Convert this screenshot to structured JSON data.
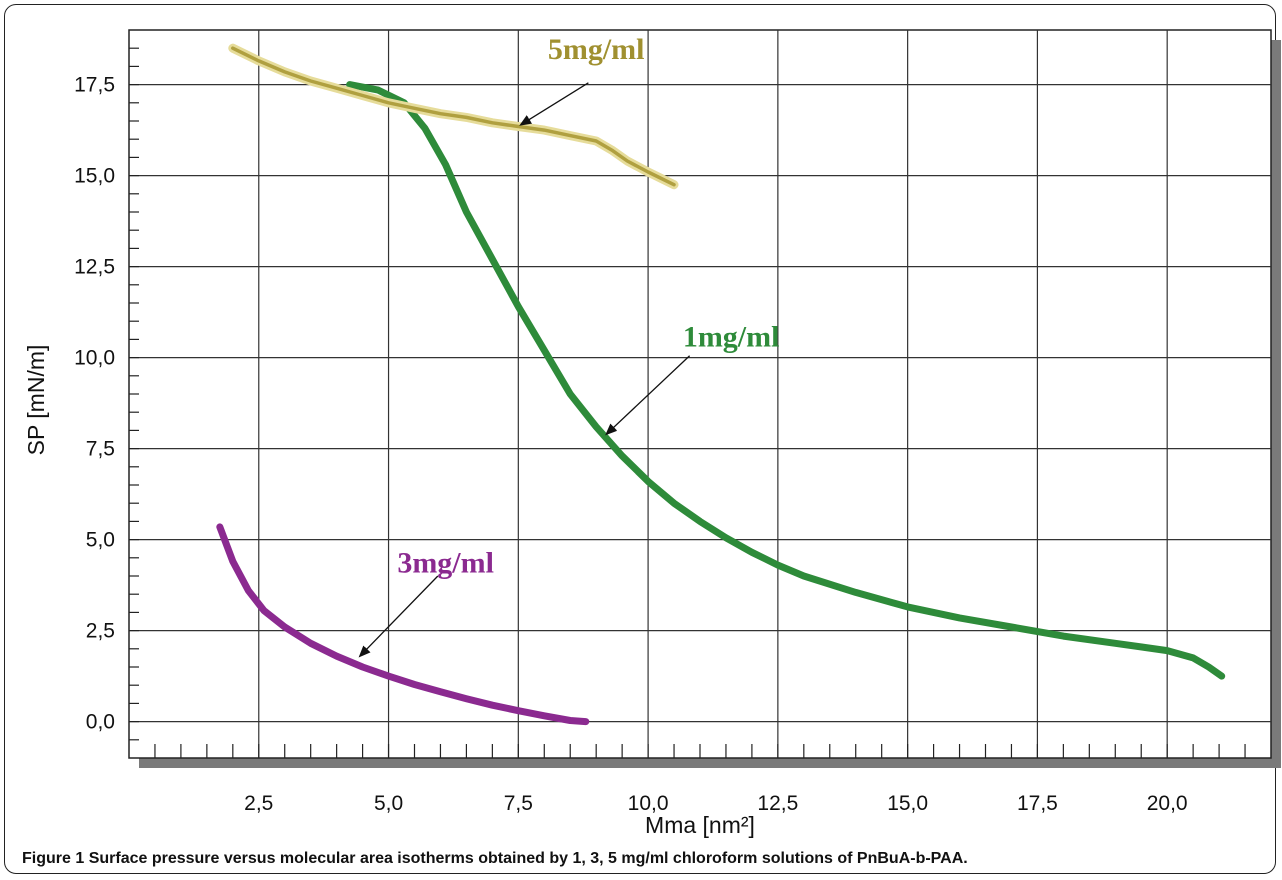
{
  "caption": {
    "figure_label": "Figure 1",
    "text": "Surface pressure versus molecular area isotherms obtained by 1, 3, 5 mg/ml chloroform solutions of PnBuA-b-PAA."
  },
  "chart_data": {
    "type": "line",
    "xlabel": "Mma [nm²]",
    "ylabel": "SP [mN/m]",
    "xlim": [
      0.0,
      22.0
    ],
    "ylim": [
      -1.0,
      19.0
    ],
    "x_ticks": [
      2.5,
      5.0,
      7.5,
      10.0,
      12.5,
      15.0,
      17.5,
      20.0
    ],
    "x_tick_labels": [
      "2,5",
      "5,0",
      "7,5",
      "10,0",
      "12,5",
      "15,0",
      "17,5",
      "20,0"
    ],
    "y_ticks": [
      0.0,
      2.5,
      5.0,
      7.5,
      10.0,
      12.5,
      15.0,
      17.5
    ],
    "y_tick_labels": [
      "0,0",
      "2,5",
      "5,0",
      "7,5",
      "10,0",
      "12,5",
      "15,0",
      "17,5"
    ],
    "grid": true,
    "series": [
      {
        "name": "1mg/ml",
        "color": "#2e8b3a",
        "x": [
          4.25,
          4.8,
          5.3,
          5.7,
          6.1,
          6.5,
          7.0,
          7.5,
          8.0,
          8.5,
          9.0,
          9.5,
          10.0,
          10.5,
          11.0,
          11.5,
          12.0,
          12.5,
          13.0,
          14.0,
          15.0,
          16.0,
          17.0,
          18.0,
          19.0,
          20.0,
          20.5,
          20.8,
          21.05
        ],
        "y": [
          17.5,
          17.35,
          17.0,
          16.3,
          15.3,
          14.0,
          12.7,
          11.4,
          10.2,
          9.0,
          8.1,
          7.3,
          6.6,
          6.0,
          5.5,
          5.05,
          4.65,
          4.3,
          4.0,
          3.55,
          3.15,
          2.85,
          2.6,
          2.35,
          2.15,
          1.95,
          1.75,
          1.5,
          1.25
        ]
      },
      {
        "name": "3mg/ml",
        "color": "#8b2a90",
        "x": [
          1.75,
          2.0,
          2.3,
          2.6,
          3.0,
          3.5,
          4.0,
          4.5,
          5.0,
          5.5,
          6.0,
          6.5,
          7.0,
          7.5,
          8.0,
          8.5,
          8.8
        ],
        "y": [
          5.35,
          4.4,
          3.6,
          3.05,
          2.6,
          2.15,
          1.8,
          1.5,
          1.25,
          1.02,
          0.82,
          0.63,
          0.45,
          0.3,
          0.16,
          0.03,
          0.0
        ]
      },
      {
        "name": "5mg/ml",
        "color": "#b0a040",
        "x": [
          2.0,
          2.5,
          3.0,
          3.5,
          4.0,
          4.5,
          5.0,
          5.5,
          6.0,
          6.5,
          7.0,
          7.5,
          8.0,
          8.5,
          9.0,
          9.3,
          9.6,
          10.0,
          10.5
        ],
        "y": [
          18.5,
          18.15,
          17.85,
          17.6,
          17.4,
          17.2,
          17.0,
          16.85,
          16.7,
          16.6,
          16.45,
          16.35,
          16.25,
          16.1,
          15.95,
          15.7,
          15.4,
          15.1,
          14.75
        ]
      }
    ],
    "annotations": [
      {
        "text": "5mg/ml",
        "color": "#a09030",
        "label_x": 9.0,
        "label_y": 18.2,
        "arrow_from": [
          8.85,
          17.55
        ],
        "arrow_to": [
          7.55,
          16.4
        ]
      },
      {
        "text": "1mg/ml",
        "color": "#2e8b3a",
        "label_x": 11.6,
        "label_y": 10.3,
        "arrow_from": [
          10.8,
          10.05
        ],
        "arrow_to": [
          9.2,
          7.9
        ]
      },
      {
        "text": "3mg/ml",
        "color": "#8b2a90",
        "label_x": 6.1,
        "label_y": 4.1,
        "arrow_from": [
          5.95,
          4.0
        ],
        "arrow_to": [
          4.45,
          1.8
        ]
      }
    ]
  }
}
